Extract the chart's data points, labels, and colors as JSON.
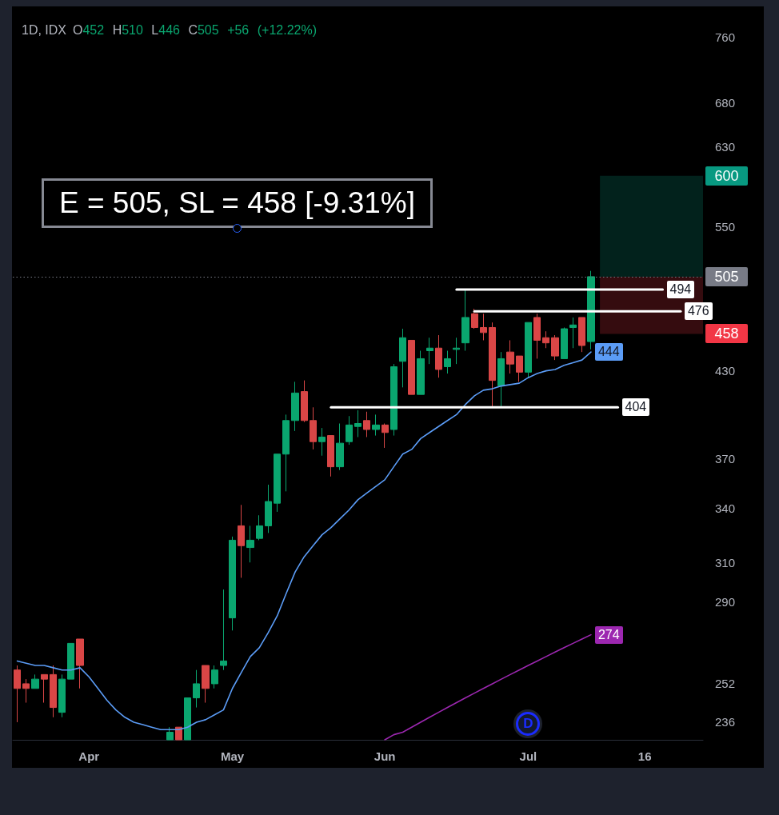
{
  "chart_data": {
    "type": "candlestick",
    "title": "1D, IDX",
    "subtitle": "O452 H510 L446 C505 +56 (+12.22%)",
    "categories": [
      null,
      null,
      null,
      null,
      null,
      null,
      null,
      null,
      "Apr",
      null,
      null,
      null,
      null,
      null,
      null,
      null,
      null,
      null,
      null,
      null,
      null,
      null,
      null,
      null,
      "May",
      null,
      null,
      null,
      null,
      null,
      null,
      null,
      null,
      null,
      null,
      null,
      null,
      null,
      null,
      null,
      null,
      "Jun",
      null,
      null,
      null,
      null,
      null,
      null,
      null,
      null,
      null,
      null,
      null,
      null,
      null,
      null,
      null,
      "Jul",
      null,
      null,
      null,
      null,
      null,
      null,
      null,
      null,
      null,
      null,
      null,
      null,
      "16",
      null,
      null,
      null,
      null,
      null,
      null
    ],
    "ohlc": [
      [
        258,
        260,
        236,
        250
      ],
      [
        252,
        254,
        244,
        250
      ],
      [
        250,
        256,
        250,
        254
      ],
      [
        256,
        256,
        244,
        254
      ],
      [
        256,
        260,
        238,
        242
      ],
      [
        240,
        256,
        238,
        254
      ],
      [
        254,
        270,
        254,
        270
      ],
      [
        272,
        272,
        250,
        260
      ],
      null,
      null,
      null,
      null,
      null,
      null,
      null,
      null,
      null,
      [
        229,
        234,
        229,
        232
      ],
      [
        234,
        234,
        229,
        229
      ],
      [
        229,
        246,
        229,
        246
      ],
      [
        246,
        258,
        242,
        252
      ],
      [
        260,
        260,
        244,
        250
      ],
      [
        252,
        260,
        250,
        258
      ],
      [
        260,
        296,
        258,
        262
      ],
      [
        282,
        324,
        276,
        322
      ],
      [
        330,
        342,
        302,
        319
      ],
      [
        318,
        330,
        310,
        322
      ],
      [
        323,
        336,
        322,
        330
      ],
      [
        330,
        354,
        326,
        344
      ],
      [
        343,
        373,
        338,
        373
      ],
      [
        373,
        399,
        350,
        395
      ],
      [
        395,
        422,
        388,
        414
      ],
      [
        415,
        423,
        394,
        395
      ],
      [
        395,
        404,
        376,
        381
      ],
      [
        381,
        390,
        372,
        384
      ],
      [
        385,
        385,
        359,
        365
      ],
      [
        365,
        393,
        363,
        380
      ],
      [
        381,
        398,
        379,
        392
      ],
      [
        391,
        402,
        384,
        393
      ],
      [
        395,
        401,
        384,
        389
      ],
      [
        389,
        399,
        385,
        392
      ],
      [
        392,
        393,
        377,
        387
      ],
      [
        389,
        435,
        385,
        433
      ],
      [
        437,
        462,
        418,
        455
      ],
      [
        453,
        453,
        413,
        413
      ],
      [
        413,
        445,
        413,
        439
      ],
      [
        445,
        455,
        435,
        447
      ],
      [
        447,
        457,
        425,
        431
      ],
      [
        433,
        445,
        428,
        439
      ],
      [
        446,
        455,
        435,
        447
      ],
      [
        451,
        494,
        445,
        471
      ],
      [
        474,
        478,
        462,
        463
      ],
      [
        463,
        474,
        453,
        459
      ],
      [
        463,
        467,
        404,
        423
      ],
      [
        419,
        444,
        404,
        439
      ],
      [
        444,
        453,
        428,
        435
      ],
      [
        441,
        441,
        422,
        429
      ],
      [
        429,
        467,
        425,
        467
      ],
      [
        471,
        474,
        439,
        453
      ],
      [
        455,
        460,
        447,
        451
      ],
      [
        455,
        457,
        438,
        441
      ],
      [
        439,
        463,
        439,
        462
      ],
      [
        463,
        471,
        447,
        465
      ],
      [
        471,
        471,
        444,
        449
      ],
      [
        452,
        510,
        446,
        505
      ],
      null,
      null,
      null,
      null,
      null,
      null,
      null,
      null,
      null,
      null,
      null,
      null
    ],
    "colors": [
      "#d94646",
      "#d94646",
      "#0aa66f",
      "#d94646",
      "#d94646",
      "#0aa66f",
      "#0aa66f",
      "#d94646",
      null,
      null,
      null,
      null,
      null,
      null,
      null,
      null,
      null,
      "#0aa66f",
      "#d94646",
      "#0aa66f",
      "#0aa66f",
      "#d94646",
      "#0aa66f",
      "#0aa66f",
      "#0aa66f",
      "#d94646",
      "#0aa66f",
      "#0aa66f",
      "#0aa66f",
      "#0aa66f",
      "#0aa66f",
      "#0aa66f",
      "#d94646",
      "#d94646",
      "#0aa66f",
      "#d94646",
      "#0aa66f",
      "#0aa66f",
      "#0aa66f",
      "#d94646",
      "#0aa66f",
      "#d94646",
      "#0aa66f",
      "#0aa66f",
      "#d94646",
      "#0aa66f",
      "#0aa66f",
      "#d94646",
      "#0aa66f",
      "#0aa66f",
      "#0aa66f",
      "#d94646",
      "#d94646",
      "#d94646",
      "#0aa66f",
      "#d94646",
      "#d94646",
      "#0aa66f",
      "#d94646",
      "#d94646",
      "#d94646",
      "#0aa66f",
      "#0aa66f",
      "#d94646",
      "#0aa66f",
      null,
      null,
      null,
      null,
      null,
      null,
      null,
      null,
      null,
      null,
      null,
      null
    ],
    "series": [
      {
        "type": "line",
        "color": "#5b9cf6",
        "values": [
          262,
          261,
          260,
          260,
          259,
          258,
          258,
          259,
          255,
          250,
          245,
          241,
          238,
          236,
          235,
          234,
          233,
          233,
          233,
          234,
          236,
          237,
          239,
          241,
          250,
          257,
          264,
          268,
          275,
          283,
          294,
          305,
          313,
          319,
          325,
          329,
          334,
          339,
          345,
          349,
          353,
          357,
          365,
          373,
          376,
          383,
          387,
          391,
          395,
          399,
          406,
          412,
          416,
          417,
          419,
          420,
          421,
          425,
          428,
          430,
          431,
          434,
          436,
          438,
          444,
          null,
          null,
          null,
          null,
          null,
          null,
          null,
          null,
          null,
          null,
          null,
          null
        ],
        "value_labels": [
          null,
          null,
          null,
          null,
          null,
          null,
          null,
          null,
          null,
          null,
          null,
          null,
          null,
          null,
          null,
          null,
          null,
          null,
          null,
          null,
          null,
          null,
          null,
          null,
          null,
          null,
          null,
          null,
          null,
          null,
          null,
          null,
          null,
          null,
          null,
          null,
          null,
          null,
          null,
          null,
          null,
          null,
          null,
          null,
          null,
          null,
          null,
          null,
          null,
          null,
          null,
          null,
          null,
          null,
          null,
          null,
          null,
          null,
          null,
          null,
          null,
          null,
          null,
          null,
          "444",
          null,
          null,
          null,
          null,
          null,
          null,
          null,
          null,
          null,
          null,
          null,
          null
        ]
      },
      {
        "type": "line",
        "color": "#9c27b0",
        "values": [
          null,
          null,
          null,
          null,
          null,
          null,
          null,
          null,
          null,
          null,
          null,
          null,
          null,
          null,
          null,
          null,
          null,
          null,
          null,
          null,
          null,
          null,
          null,
          null,
          null,
          null,
          null,
          null,
          null,
          null,
          null,
          null,
          null,
          null,
          null,
          null,
          null,
          null,
          null,
          null,
          null,
          229,
          231,
          232,
          234,
          236,
          238,
          240,
          242,
          244,
          246,
          248,
          250,
          252,
          254,
          256,
          258,
          260,
          262,
          264,
          266,
          268,
          270,
          272,
          274,
          null,
          null,
          null,
          null,
          null,
          null,
          null,
          null,
          null,
          null,
          null,
          null
        ],
        "value_labels": [
          null,
          null,
          null,
          null,
          null,
          null,
          null,
          null,
          null,
          null,
          null,
          null,
          null,
          null,
          null,
          null,
          null,
          null,
          null,
          null,
          null,
          null,
          null,
          null,
          null,
          null,
          null,
          null,
          null,
          null,
          null,
          null,
          null,
          null,
          null,
          null,
          null,
          null,
          null,
          null,
          null,
          null,
          null,
          null,
          null,
          null,
          null,
          null,
          null,
          null,
          null,
          null,
          null,
          null,
          null,
          null,
          null,
          null,
          null,
          null,
          null,
          null,
          null,
          null,
          "274",
          null,
          null,
          null,
          null,
          null,
          null,
          null,
          null,
          null,
          null,
          null,
          null
        ]
      },
      {
        "type": "line",
        "color": "#ffffff",
        "values": [
          null,
          null,
          null,
          null,
          null,
          null,
          null,
          null,
          null,
          null,
          null,
          null,
          null,
          null,
          null,
          null,
          null,
          null,
          null,
          null,
          null,
          null,
          null,
          null,
          null,
          null,
          null,
          null,
          null,
          null,
          null,
          null,
          null,
          null,
          null,
          null,
          null,
          null,
          null,
          null,
          null,
          null,
          null,
          null,
          null,
          null,
          null,
          null,
          null,
          494,
          494,
          494,
          494,
          494,
          494,
          494,
          494,
          494,
          494,
          494,
          494,
          494,
          494,
          494,
          494,
          494,
          494,
          494,
          494,
          494,
          494,
          494,
          494,
          null,
          null,
          null,
          null
        ],
        "value_labels": [
          null,
          null,
          null,
          null,
          null,
          null,
          null,
          null,
          null,
          null,
          null,
          null,
          null,
          null,
          null,
          null,
          null,
          null,
          null,
          null,
          null,
          null,
          null,
          null,
          null,
          null,
          null,
          null,
          null,
          null,
          null,
          null,
          null,
          null,
          null,
          null,
          null,
          null,
          null,
          null,
          null,
          null,
          null,
          null,
          null,
          null,
          null,
          null,
          null,
          null,
          null,
          null,
          null,
          null,
          null,
          null,
          null,
          null,
          null,
          null,
          null,
          null,
          null,
          null,
          null,
          null,
          null,
          null,
          null,
          null,
          null,
          null,
          "494",
          null,
          null,
          null,
          null
        ]
      },
      {
        "type": "line",
        "color": "#ffffff",
        "values": [
          null,
          null,
          null,
          null,
          null,
          null,
          null,
          null,
          null,
          null,
          null,
          null,
          null,
          null,
          null,
          null,
          null,
          null,
          null,
          null,
          null,
          null,
          null,
          null,
          null,
          null,
          null,
          null,
          null,
          null,
          null,
          null,
          null,
          null,
          null,
          null,
          null,
          null,
          null,
          null,
          null,
          null,
          null,
          null,
          null,
          null,
          null,
          null,
          null,
          null,
          null,
          476,
          476,
          476,
          476,
          476,
          476,
          476,
          476,
          476,
          476,
          476,
          476,
          476,
          476,
          476,
          476,
          476,
          476,
          476,
          476,
          476,
          476,
          476,
          476,
          null,
          null
        ],
        "value_labels": [
          null,
          null,
          null,
          null,
          null,
          null,
          null,
          null,
          null,
          null,
          null,
          null,
          null,
          null,
          null,
          null,
          null,
          null,
          null,
          null,
          null,
          null,
          null,
          null,
          null,
          null,
          null,
          null,
          null,
          null,
          null,
          null,
          null,
          null,
          null,
          null,
          null,
          null,
          null,
          null,
          null,
          null,
          null,
          null,
          null,
          null,
          null,
          null,
          null,
          null,
          null,
          null,
          null,
          null,
          null,
          null,
          null,
          null,
          null,
          null,
          null,
          null,
          null,
          null,
          null,
          null,
          null,
          null,
          null,
          null,
          null,
          null,
          null,
          null,
          "476",
          null,
          null
        ]
      },
      {
        "type": "line",
        "color": "#ffffff",
        "values": [
          null,
          null,
          null,
          null,
          null,
          null,
          null,
          null,
          null,
          null,
          null,
          null,
          null,
          null,
          null,
          null,
          null,
          null,
          null,
          null,
          null,
          null,
          null,
          null,
          null,
          null,
          null,
          null,
          null,
          null,
          null,
          null,
          null,
          null,
          null,
          404,
          404,
          404,
          404,
          404,
          404,
          404,
          404,
          404,
          404,
          404,
          404,
          404,
          404,
          404,
          404,
          404,
          404,
          404,
          404,
          404,
          404,
          404,
          404,
          404,
          404,
          404,
          404,
          404,
          404,
          404,
          404,
          404,
          null,
          null,
          null,
          null,
          null,
          null,
          null,
          null,
          null
        ],
        "value_labels": [
          null,
          null,
          null,
          null,
          null,
          null,
          null,
          null,
          null,
          null,
          null,
          null,
          null,
          null,
          null,
          null,
          null,
          null,
          null,
          null,
          null,
          null,
          null,
          null,
          null,
          null,
          null,
          null,
          null,
          null,
          null,
          null,
          null,
          null,
          null,
          null,
          null,
          null,
          null,
          null,
          null,
          null,
          null,
          null,
          null,
          null,
          null,
          null,
          null,
          null,
          null,
          null,
          null,
          null,
          null,
          null,
          null,
          null,
          null,
          null,
          null,
          null,
          null,
          null,
          null,
          null,
          null,
          "404",
          null,
          null,
          null,
          null,
          null,
          null,
          null,
          null,
          null
        ]
      }
    ],
    "ylim": [
      229,
      800
    ],
    "yticks": [
      236,
      252,
      290,
      310,
      340,
      370,
      430,
      550,
      630,
      680,
      760
    ],
    "log": true,
    "grid": false,
    "marker": "none",
    "ref_lines": [
      {
        "axis": "y",
        "value": 505,
        "label": "505",
        "color": "#787b86",
        "line_style": "dotted"
      }
    ],
    "bands": [
      {
        "axis": "y",
        "from": 505,
        "to": 600,
        "label": "600",
        "color": "#089981"
      },
      {
        "axis": "y",
        "from": 505,
        "to": 458,
        "label": "458",
        "color": "#f23645"
      }
    ],
    "annotations": [
      "E = 505, SL = 458 [-9.31%]",
      {
        "text": "D",
        "x": "Jul"
      }
    ]
  }
}
